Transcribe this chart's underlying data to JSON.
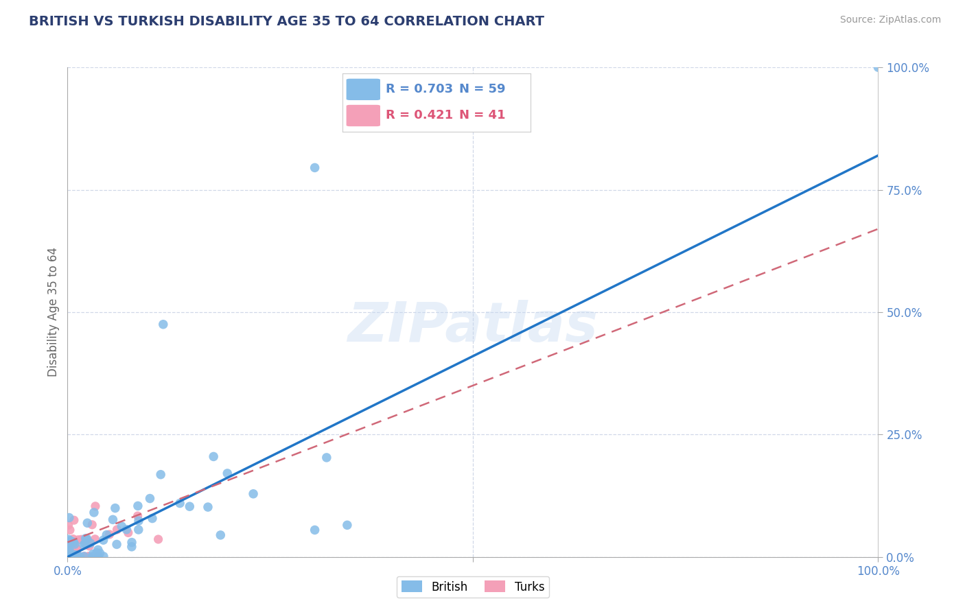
{
  "title": "BRITISH VS TURKISH DISABILITY AGE 35 TO 64 CORRELATION CHART",
  "source": "Source: ZipAtlas.com",
  "ylabel": "Disability Age 35 to 64",
  "watermark": "ZIPatlas",
  "british": {
    "R": 0.703,
    "N": 59,
    "color": "#85bce8",
    "line_color": "#2176c7"
  },
  "turks": {
    "R": 0.421,
    "N": 41,
    "color": "#f4a0b8",
    "line_color": "#d06878"
  },
  "xlim": [
    0.0,
    1.0
  ],
  "ylim": [
    0.0,
    1.0
  ],
  "ytick_labels": [
    "0.0%",
    "25.0%",
    "50.0%",
    "75.0%",
    "100.0%"
  ],
  "ytick_values": [
    0.0,
    0.25,
    0.5,
    0.75,
    1.0
  ],
  "grid_color": "#d0d8e8",
  "background_color": "#ffffff",
  "title_color": "#2c3e70",
  "axis_color": "#5588cc",
  "title_fontsize": 14
}
